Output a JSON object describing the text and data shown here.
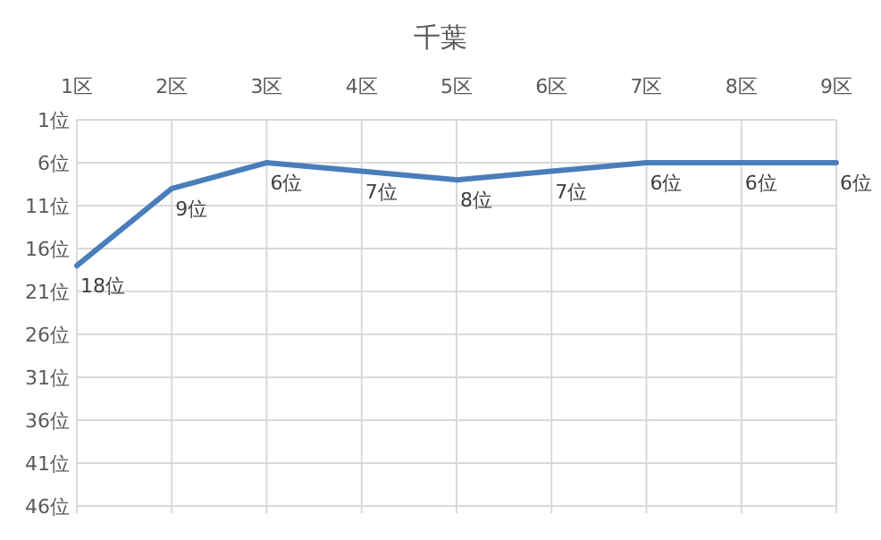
{
  "chart_data": {
    "type": "line",
    "title": "千葉",
    "categories": [
      "1区",
      "2区",
      "3区",
      "4区",
      "5区",
      "6区",
      "7区",
      "8区",
      "9区"
    ],
    "series": [
      {
        "color": "#4a7ebb",
        "values": [
          18,
          9,
          6,
          7,
          8,
          7,
          6,
          6,
          6
        ],
        "value_labels": [
          "18位",
          "9位",
          "6位",
          "7位",
          "8位",
          "7位",
          "6位",
          "6位",
          "6位"
        ]
      }
    ],
    "ylim": [
      46,
      1
    ],
    "yticks": [
      {
        "value": 1,
        "label": "1位"
      },
      {
        "value": 6,
        "label": "6位"
      },
      {
        "value": 11,
        "label": "11位"
      },
      {
        "value": 16,
        "label": "16位"
      },
      {
        "value": 21,
        "label": "21位"
      },
      {
        "value": 26,
        "label": "26位"
      },
      {
        "value": 31,
        "label": "31位"
      },
      {
        "value": 36,
        "label": "36位"
      },
      {
        "value": 41,
        "label": "41位"
      },
      {
        "value": 46,
        "label": "46位"
      }
    ],
    "grid": true,
    "marker": "none",
    "line_style": "solid"
  }
}
